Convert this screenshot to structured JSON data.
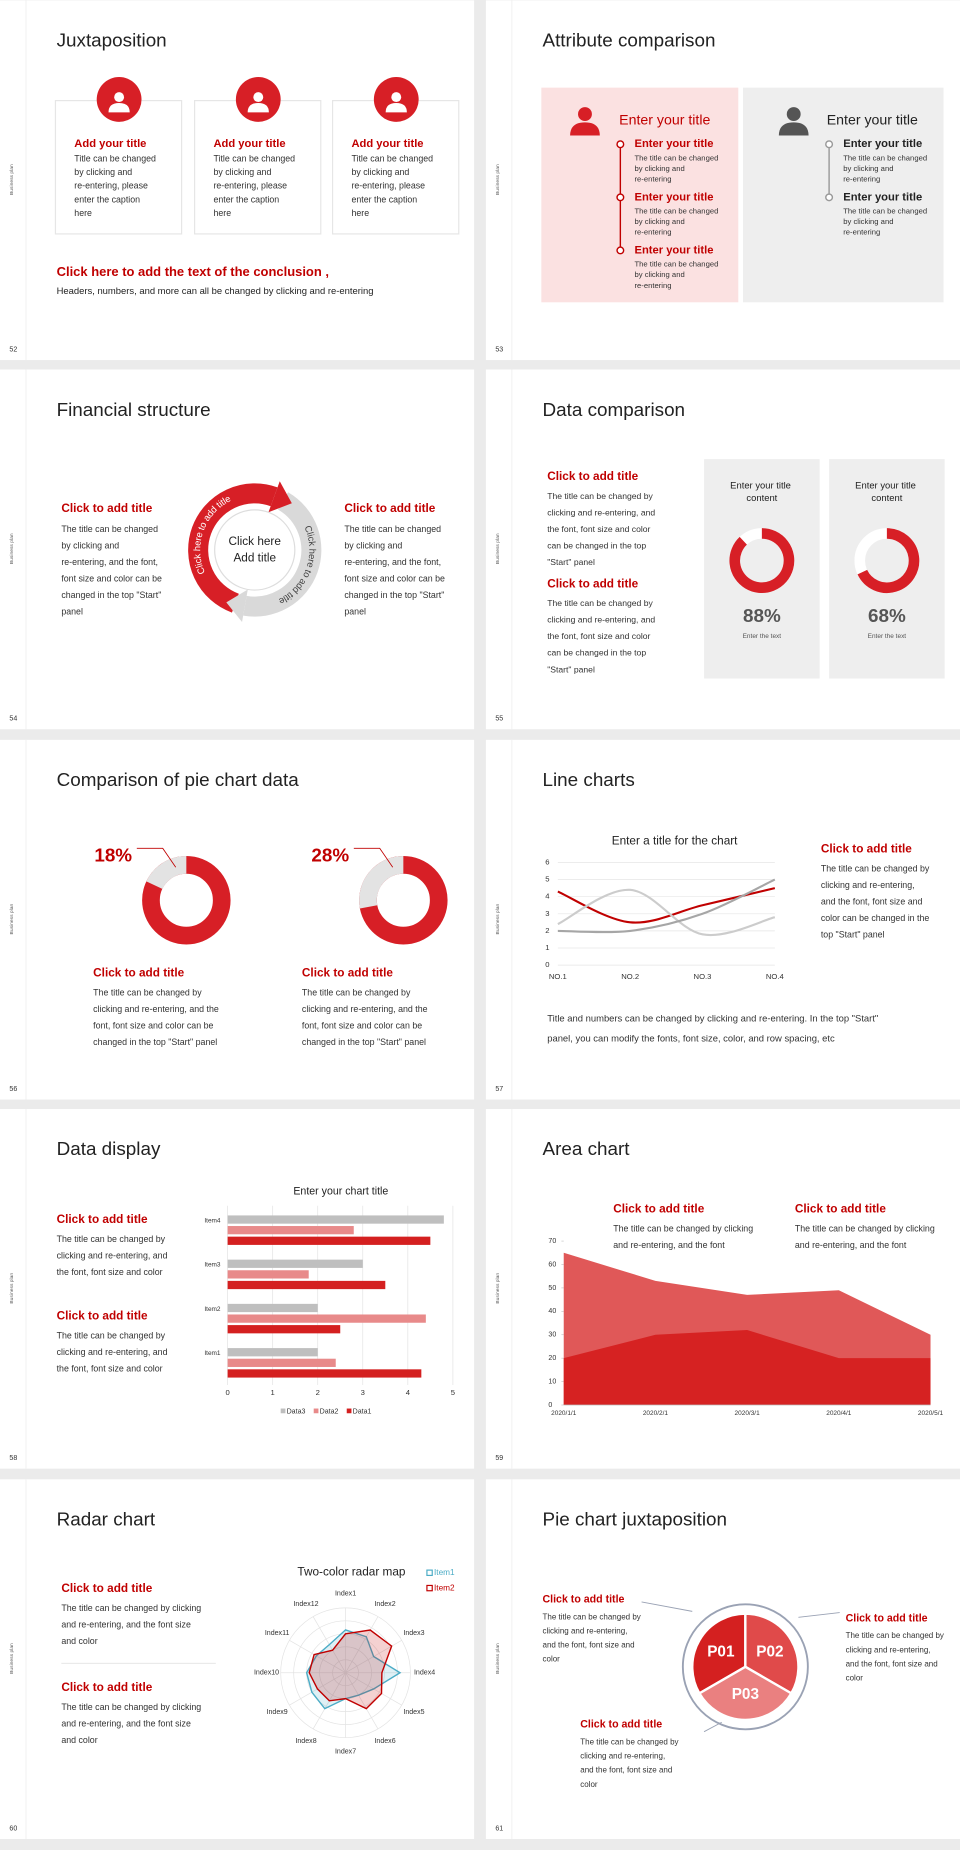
{
  "slides": [
    {
      "number": 52,
      "side": "Business plan",
      "title": "Juxtaposition",
      "cards": [
        {
          "title": "Add your title",
          "text": "Title can be changed by clicking and re-entering, please enter the caption here"
        },
        {
          "title": "Add your title",
          "text": "Title can be changed by clicking and re-entering, please enter the caption here"
        },
        {
          "title": "Add your title",
          "text": "Title can be changed by clicking and re-entering, please enter the caption here"
        }
      ],
      "conclusion": {
        "title": "Click here to add the text of the conclusion ,",
        "text": "Headers, numbers, and more can all be changed by clicking and re-entering"
      }
    },
    {
      "number": 53,
      "side": "Business plan",
      "title": "Attribute comparison",
      "left": {
        "heading": "Enter your title",
        "items": [
          {
            "title": "Enter your title",
            "text": "The title can be changed by clicking and re-entering"
          },
          {
            "title": "Enter your title",
            "text": "The title can be changed by clicking and re-entering"
          },
          {
            "title": "Enter your title",
            "text": "The title can be changed by clicking and re-entering"
          }
        ]
      },
      "right": {
        "heading": "Enter your title",
        "items": [
          {
            "title": "Enter your title",
            "text": "The title can be changed by clicking and re-entering"
          },
          {
            "title": "Enter your title",
            "text": "The title can be changed by clicking and re-entering"
          }
        ]
      }
    },
    {
      "number": 54,
      "side": "Business plan",
      "title": "Financial structure",
      "blocks": [
        {
          "title": "Click to add title",
          "text": "The title can be changed by clicking and re-entering, and the font, font size and color can be changed in the top \"Start\" panel"
        },
        {
          "title": "Click to add title",
          "text": "The title can be changed by clicking and re-entering, and the font, font size and color can be changed in the top \"Start\" panel"
        }
      ],
      "center": [
        "Click here",
        "Add title"
      ],
      "arcs": [
        "Click here to add title",
        "Click here to add title"
      ]
    },
    {
      "number": 55,
      "side": "Business plan",
      "title": "Data comparison",
      "blocks": [
        {
          "title": "Click to add title",
          "text": "The title can be changed by clicking and re-entering, and the font, font size and color can be changed in the top \"Start\" panel"
        },
        {
          "title": "Click to add title",
          "text": "The title can be changed by clicking and re-entering, and the font, font size and color can be changed in the top \"Start\" panel"
        }
      ],
      "cards": [
        {
          "title": "Enter your title content",
          "value": 88,
          "value_label": "88%",
          "caption": "Enter the text"
        },
        {
          "title": "Enter your title content",
          "value": 68,
          "value_label": "68%",
          "caption": "Enter the text"
        }
      ]
    },
    {
      "number": 56,
      "side": "Business plan",
      "title": "Comparison of pie chart data",
      "donuts": [
        {
          "value": 18,
          "value_label": "18%",
          "title": "Click to add title",
          "text": "The title can be changed by clicking and re-entering, and the font, font size and color can be changed in the top \"Start\" panel"
        },
        {
          "value": 28,
          "value_label": "28%",
          "title": "Click to add title",
          "text": "The title can be changed by clicking and re-entering, and the font, font size and color can be changed in the top \"Start\" panel"
        }
      ]
    },
    {
      "number": 57,
      "side": "Business plan",
      "title": "Line charts",
      "chart": {
        "type": "line",
        "title": "Enter a title for the chart",
        "categories": [
          "NO.1",
          "NO.2",
          "NO.3",
          "NO.4"
        ],
        "series": [
          {
            "color": "#c00000",
            "values": [
              4.3,
              2.5,
              3.5,
              4.5
            ]
          },
          {
            "color": "#cccccc",
            "values": [
              2.4,
              4.4,
              1.8,
              2.8
            ]
          },
          {
            "color": "#a6a6a6",
            "values": [
              2.0,
              2.0,
              3.0,
              5.0
            ]
          }
        ],
        "ylim": [
          0,
          6
        ],
        "yticks": [
          0,
          1,
          2,
          3,
          4,
          5,
          6
        ],
        "grid": true
      },
      "block": {
        "title": "Click to add title",
        "text": "The title can be changed by clicking and re-entering, and the font, font size and color can be changed in the top \"Start\" panel"
      },
      "note": "Title and numbers can be changed by clicking and re-entering. In the top \"Start\" panel, you can modify the fonts, font size, color, and row spacing, etc"
    },
    {
      "number": 58,
      "side": "Business plan",
      "title": "Data display",
      "chart": {
        "type": "bar",
        "orientation": "horizontal",
        "title": "Enter your chart title",
        "categories": [
          "Item1",
          "Item2",
          "Item3",
          "Item4"
        ],
        "series": [
          {
            "name": "Data3",
            "color": "#bfbfbf",
            "values": [
              2.0,
              2.0,
              3.0,
              4.8
            ]
          },
          {
            "name": "Data2",
            "color": "#e88a8a",
            "values": [
              2.4,
              4.4,
              1.8,
              2.8
            ]
          },
          {
            "name": "Data1",
            "color": "#d42020",
            "values": [
              4.3,
              2.5,
              3.5,
              4.5
            ]
          }
        ],
        "xlim": [
          0,
          5
        ],
        "xticks": [
          0,
          1,
          2,
          3,
          4,
          5
        ],
        "grid": true
      },
      "blocks": [
        {
          "title": "Click to add title",
          "text": "The title can be changed by clicking and re-entering, and the font, font size and color"
        },
        {
          "title": "Click to add title",
          "text": "The title can be changed by clicking and re-entering, and the font, font size and color"
        }
      ]
    },
    {
      "number": 59,
      "side": "Business plan",
      "title": "Area chart",
      "chart": {
        "type": "area",
        "categories": [
          "2020/1/1",
          "2020/2/1",
          "2020/3/1",
          "2020/4/1",
          "2020/5/1"
        ],
        "series": [
          {
            "color": "#e05858",
            "values": [
              65,
              53,
              47,
              49,
              30
            ]
          },
          {
            "color": "#d62222",
            "values": [
              20,
              30,
              32,
              20,
              20
            ]
          }
        ],
        "ylim": [
          0,
          70
        ],
        "yticks": [
          0,
          10,
          20,
          30,
          40,
          50,
          60,
          70
        ]
      },
      "blocks": [
        {
          "title": "Click to add title",
          "text": "The title can be changed by clicking and re-entering, and the font"
        },
        {
          "title": "Click to add title",
          "text": "The title can be changed by clicking and re-entering, and the font"
        }
      ]
    },
    {
      "number": 60,
      "side": "Business plan",
      "title": "Radar chart",
      "chart": {
        "type": "radar",
        "title": "Two-color radar map",
        "categories": [
          "Index1",
          "Index2",
          "Index3",
          "Index4",
          "Index5",
          "Index6",
          "Index7",
          "Index8",
          "Index9",
          "Index10",
          "Index11",
          "Index12"
        ],
        "series": [
          {
            "name": "Item1",
            "color": "#4bacc6",
            "values": [
              3.3,
              3.2,
              2.5,
              4.2,
              2.5,
              2.0,
              2.0,
              3.2,
              3.0,
              3.0,
              2.6,
              2.5
            ]
          },
          {
            "name": "Item2",
            "color": "#c00000",
            "values": [
              3.0,
              3.8,
              4.1,
              2.8,
              3.2,
              3.2,
              2.0,
              2.5,
              2.5,
              2.8,
              2.8,
              2.0
            ]
          }
        ],
        "rlim": [
          0,
          5
        ]
      },
      "blocks": [
        {
          "title": "Click to add title",
          "text": "The title can be changed by clicking and re-entering, and the font size and color"
        },
        {
          "title": "Click to add title",
          "text": "The title can be changed by clicking and re-entering, and the font size and color"
        }
      ]
    },
    {
      "number": 61,
      "side": "Business plan",
      "title": "Pie chart juxtaposition",
      "segments": [
        "P01",
        "P02",
        "P03"
      ],
      "blocks": [
        {
          "title": "Click to add title",
          "text": "The title can be changed by clicking and re-entering, and the font, font size and color"
        },
        {
          "title": "Click to add title",
          "text": "The title can be changed by clicking and re-entering, and the font, font size and color"
        },
        {
          "title": "Click to add title",
          "text": "The title can be changed by clicking and re-entering, and the font, font size and color"
        }
      ]
    }
  ]
}
